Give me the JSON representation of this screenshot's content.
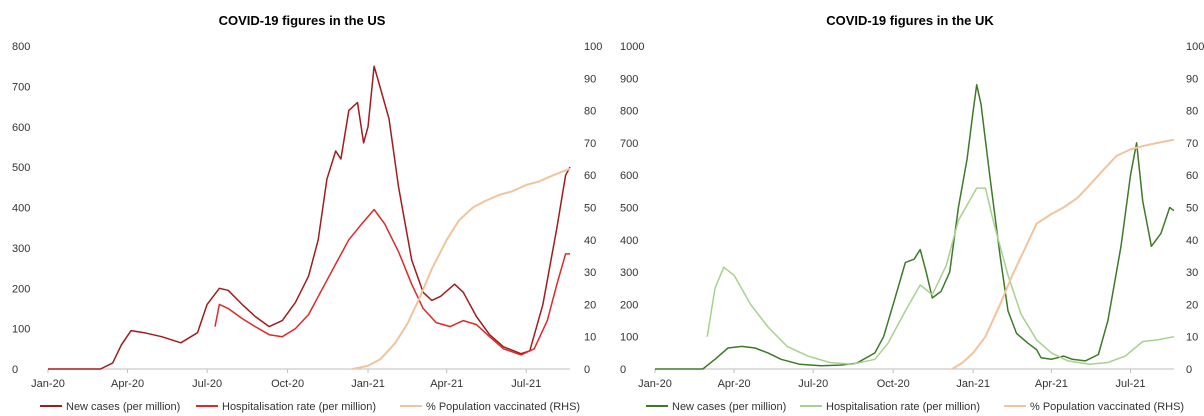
{
  "chart_data": [
    {
      "type": "line",
      "title": "COVID-19 figures in the US",
      "x_ticks": [
        "Jan-20",
        "Apr-20",
        "Jul-20",
        "Oct-20",
        "Jan-21",
        "Apr-21",
        "Jul-21"
      ],
      "x_range": [
        "2020-01-01",
        "2021-08-20"
      ],
      "ylim": [
        0,
        800
      ],
      "y_ticks": [
        0,
        100,
        200,
        300,
        400,
        500,
        600,
        700,
        800
      ],
      "y2lim": [
        0,
        100
      ],
      "y2_ticks": [
        0,
        10,
        20,
        30,
        40,
        50,
        60,
        70,
        80,
        90,
        100
      ],
      "legend_position": "bottom",
      "grid": false,
      "series": [
        {
          "name": "New cases (per million)",
          "color": "#a01c1c",
          "axis": "left",
          "points": [
            [
              "2020-01-01",
              0
            ],
            [
              "2020-03-01",
              0
            ],
            [
              "2020-03-15",
              15
            ],
            [
              "2020-03-25",
              60
            ],
            [
              "2020-04-05",
              95
            ],
            [
              "2020-04-20",
              90
            ],
            [
              "2020-05-10",
              80
            ],
            [
              "2020-06-01",
              65
            ],
            [
              "2020-06-20",
              90
            ],
            [
              "2020-07-01",
              160
            ],
            [
              "2020-07-15",
              200
            ],
            [
              "2020-07-25",
              195
            ],
            [
              "2020-08-10",
              160
            ],
            [
              "2020-08-25",
              130
            ],
            [
              "2020-09-10",
              105
            ],
            [
              "2020-09-25",
              120
            ],
            [
              "2020-10-10",
              165
            ],
            [
              "2020-10-25",
              230
            ],
            [
              "2020-11-05",
              320
            ],
            [
              "2020-11-15",
              470
            ],
            [
              "2020-11-25",
              540
            ],
            [
              "2020-12-01",
              520
            ],
            [
              "2020-12-10",
              640
            ],
            [
              "2020-12-20",
              660
            ],
            [
              "2020-12-27",
              560
            ],
            [
              "2021-01-01",
              600
            ],
            [
              "2021-01-08",
              750
            ],
            [
              "2021-01-12",
              720
            ],
            [
              "2021-01-25",
              620
            ],
            [
              "2021-02-05",
              450
            ],
            [
              "2021-02-20",
              270
            ],
            [
              "2021-03-05",
              190
            ],
            [
              "2021-03-15",
              170
            ],
            [
              "2021-03-25",
              180
            ],
            [
              "2021-04-10",
              210
            ],
            [
              "2021-04-20",
              190
            ],
            [
              "2021-05-05",
              130
            ],
            [
              "2021-05-20",
              85
            ],
            [
              "2021-06-05",
              55
            ],
            [
              "2021-06-25",
              38
            ],
            [
              "2021-07-05",
              45
            ],
            [
              "2021-07-20",
              160
            ],
            [
              "2021-08-05",
              350
            ],
            [
              "2021-08-15",
              480
            ],
            [
              "2021-08-20",
              500
            ]
          ]
        },
        {
          "name": "Hospitalisation rate (per million)",
          "color": "#e02828",
          "axis": "left",
          "points": [
            [
              "2020-07-10",
              105
            ],
            [
              "2020-07-15",
              160
            ],
            [
              "2020-07-25",
              150
            ],
            [
              "2020-08-10",
              125
            ],
            [
              "2020-08-25",
              105
            ],
            [
              "2020-09-10",
              85
            ],
            [
              "2020-09-25",
              80
            ],
            [
              "2020-10-10",
              100
            ],
            [
              "2020-10-25",
              135
            ],
            [
              "2020-11-10",
              200
            ],
            [
              "2020-11-25",
              260
            ],
            [
              "2020-12-10",
              320
            ],
            [
              "2020-12-25",
              360
            ],
            [
              "2021-01-08",
              395
            ],
            [
              "2021-01-20",
              360
            ],
            [
              "2021-02-05",
              290
            ],
            [
              "2021-02-20",
              210
            ],
            [
              "2021-03-05",
              150
            ],
            [
              "2021-03-20",
              115
            ],
            [
              "2021-04-05",
              105
            ],
            [
              "2021-04-20",
              120
            ],
            [
              "2021-05-05",
              110
            ],
            [
              "2021-05-20",
              80
            ],
            [
              "2021-06-05",
              50
            ],
            [
              "2021-06-25",
              35
            ],
            [
              "2021-07-10",
              50
            ],
            [
              "2021-07-25",
              120
            ],
            [
              "2021-08-05",
              210
            ],
            [
              "2021-08-15",
              285
            ],
            [
              "2021-08-20",
              285
            ]
          ]
        },
        {
          "name": "% Population vaccinated (RHS)",
          "color": "#f2c49c",
          "axis": "right",
          "points": [
            [
              "2020-12-14",
              0
            ],
            [
              "2020-12-20",
              0.3
            ],
            [
              "2021-01-01",
              1
            ],
            [
              "2021-01-15",
              3
            ],
            [
              "2021-02-01",
              8
            ],
            [
              "2021-02-15",
              14
            ],
            [
              "2021-03-01",
              22
            ],
            [
              "2021-03-15",
              31
            ],
            [
              "2021-04-01",
              40
            ],
            [
              "2021-04-15",
              46
            ],
            [
              "2021-05-01",
              50
            ],
            [
              "2021-05-15",
              52
            ],
            [
              "2021-06-01",
              54
            ],
            [
              "2021-06-15",
              55
            ],
            [
              "2021-07-01",
              57
            ],
            [
              "2021-07-15",
              58
            ],
            [
              "2021-08-01",
              60
            ],
            [
              "2021-08-20",
              62
            ]
          ]
        }
      ]
    },
    {
      "type": "line",
      "title": "COVID-19 figures in the UK",
      "x_ticks": [
        "Jan-20",
        "Apr-20",
        "Jul-20",
        "Oct-20",
        "Jan-21",
        "Apr-21",
        "Jul-21"
      ],
      "x_range": [
        "2020-01-01",
        "2021-08-20"
      ],
      "ylim": [
        0,
        1000
      ],
      "y_ticks": [
        0,
        100,
        200,
        300,
        400,
        500,
        600,
        700,
        800,
        900,
        1000
      ],
      "y2lim": [
        0,
        100
      ],
      "y2_ticks": [
        0,
        10,
        20,
        30,
        40,
        50,
        60,
        70,
        80,
        90,
        100
      ],
      "legend_position": "bottom",
      "grid": false,
      "series": [
        {
          "name": "New cases (per million)",
          "color": "#3d7a28",
          "axis": "left",
          "points": [
            [
              "2020-01-01",
              0
            ],
            [
              "2020-02-25",
              0
            ],
            [
              "2020-03-10",
              30
            ],
            [
              "2020-03-25",
              65
            ],
            [
              "2020-04-10",
              70
            ],
            [
              "2020-04-25",
              65
            ],
            [
              "2020-05-10",
              50
            ],
            [
              "2020-05-25",
              30
            ],
            [
              "2020-06-15",
              15
            ],
            [
              "2020-07-10",
              10
            ],
            [
              "2020-08-01",
              12
            ],
            [
              "2020-08-20",
              18
            ],
            [
              "2020-09-10",
              50
            ],
            [
              "2020-09-20",
              100
            ],
            [
              "2020-10-01",
              200
            ],
            [
              "2020-10-15",
              330
            ],
            [
              "2020-10-25",
              340
            ],
            [
              "2020-11-01",
              370
            ],
            [
              "2020-11-08",
              300
            ],
            [
              "2020-11-15",
              220
            ],
            [
              "2020-11-25",
              240
            ],
            [
              "2020-12-05",
              300
            ],
            [
              "2020-12-15",
              500
            ],
            [
              "2020-12-25",
              650
            ],
            [
              "2021-01-01",
              800
            ],
            [
              "2021-01-05",
              880
            ],
            [
              "2021-01-10",
              820
            ],
            [
              "2021-01-20",
              600
            ],
            [
              "2021-02-01",
              350
            ],
            [
              "2021-02-10",
              180
            ],
            [
              "2021-02-20",
              110
            ],
            [
              "2021-03-05",
              80
            ],
            [
              "2021-03-15",
              60
            ],
            [
              "2021-03-20",
              35
            ],
            [
              "2021-04-01",
              30
            ],
            [
              "2021-04-15",
              40
            ],
            [
              "2021-04-25",
              30
            ],
            [
              "2021-05-10",
              25
            ],
            [
              "2021-05-25",
              45
            ],
            [
              "2021-06-05",
              150
            ],
            [
              "2021-06-20",
              380
            ],
            [
              "2021-07-01",
              600
            ],
            [
              "2021-07-08",
              700
            ],
            [
              "2021-07-15",
              520
            ],
            [
              "2021-07-25",
              380
            ],
            [
              "2021-08-05",
              420
            ],
            [
              "2021-08-15",
              500
            ],
            [
              "2021-08-20",
              490
            ]
          ]
        },
        {
          "name": "Hospitalisation rate (per million)",
          "color": "#a8d08f",
          "axis": "left",
          "points": [
            [
              "2020-03-01",
              100
            ],
            [
              "2020-03-10",
              250
            ],
            [
              "2020-03-20",
              315
            ],
            [
              "2020-04-01",
              290
            ],
            [
              "2020-04-20",
              200
            ],
            [
              "2020-05-10",
              130
            ],
            [
              "2020-06-01",
              70
            ],
            [
              "2020-06-25",
              40
            ],
            [
              "2020-07-20",
              20
            ],
            [
              "2020-08-15",
              15
            ],
            [
              "2020-09-10",
              30
            ],
            [
              "2020-09-25",
              80
            ],
            [
              "2020-10-15",
              180
            ],
            [
              "2020-11-01",
              260
            ],
            [
              "2020-11-15",
              230
            ],
            [
              "2020-12-01",
              320
            ],
            [
              "2020-12-15",
              460
            ],
            [
              "2021-01-05",
              560
            ],
            [
              "2021-01-15",
              560
            ],
            [
              "2021-01-25",
              450
            ],
            [
              "2021-02-10",
              290
            ],
            [
              "2021-02-25",
              170
            ],
            [
              "2021-03-15",
              90
            ],
            [
              "2021-04-01",
              50
            ],
            [
              "2021-04-20",
              25
            ],
            [
              "2021-05-15",
              15
            ],
            [
              "2021-06-05",
              20
            ],
            [
              "2021-06-25",
              40
            ],
            [
              "2021-07-15",
              85
            ],
            [
              "2021-08-01",
              90
            ],
            [
              "2021-08-20",
              100
            ]
          ]
        },
        {
          "name": "% Population vaccinated (RHS)",
          "color": "#f2c49c",
          "axis": "right",
          "points": [
            [
              "2020-12-08",
              0
            ],
            [
              "2020-12-20",
              2
            ],
            [
              "2021-01-01",
              5
            ],
            [
              "2021-01-15",
              10
            ],
            [
              "2021-02-01",
              20
            ],
            [
              "2021-02-15",
              29
            ],
            [
              "2021-03-01",
              37
            ],
            [
              "2021-03-15",
              45
            ],
            [
              "2021-04-01",
              48
            ],
            [
              "2021-04-15",
              50
            ],
            [
              "2021-05-01",
              53
            ],
            [
              "2021-05-15",
              57
            ],
            [
              "2021-06-01",
              62
            ],
            [
              "2021-06-15",
              66
            ],
            [
              "2021-07-01",
              68
            ],
            [
              "2021-07-15",
              69
            ],
            [
              "2021-08-01",
              70
            ],
            [
              "2021-08-20",
              71
            ]
          ]
        }
      ]
    }
  ]
}
